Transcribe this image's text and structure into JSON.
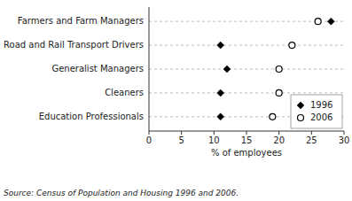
{
  "chart_data": {
    "type": "dot",
    "orientation": "horizontal",
    "categories": [
      "Education Professionals",
      "Cleaners",
      "Generalist Managers",
      "Road and Rail Transport Drivers",
      "Farmers and Farm Managers"
    ],
    "series": [
      {
        "name": "1996",
        "color": "#000000",
        "marker": "diamond",
        "values": [
          11.0,
          11.0,
          12.0,
          11.0,
          28.0
        ]
      },
      {
        "name": "2006",
        "color": "#000000",
        "marker": "circle",
        "values": [
          19.0,
          20.0,
          20.0,
          22.0,
          26.0
        ]
      }
    ],
    "xlabel": "% of employees",
    "xlim": [
      0,
      30
    ],
    "xticks": [
      0,
      5,
      10,
      15,
      20,
      25,
      30
    ],
    "grid": true,
    "legend": "lower right",
    "annotations": [
      "Source: Census of Population and Housing 1996 and 2006."
    ]
  }
}
